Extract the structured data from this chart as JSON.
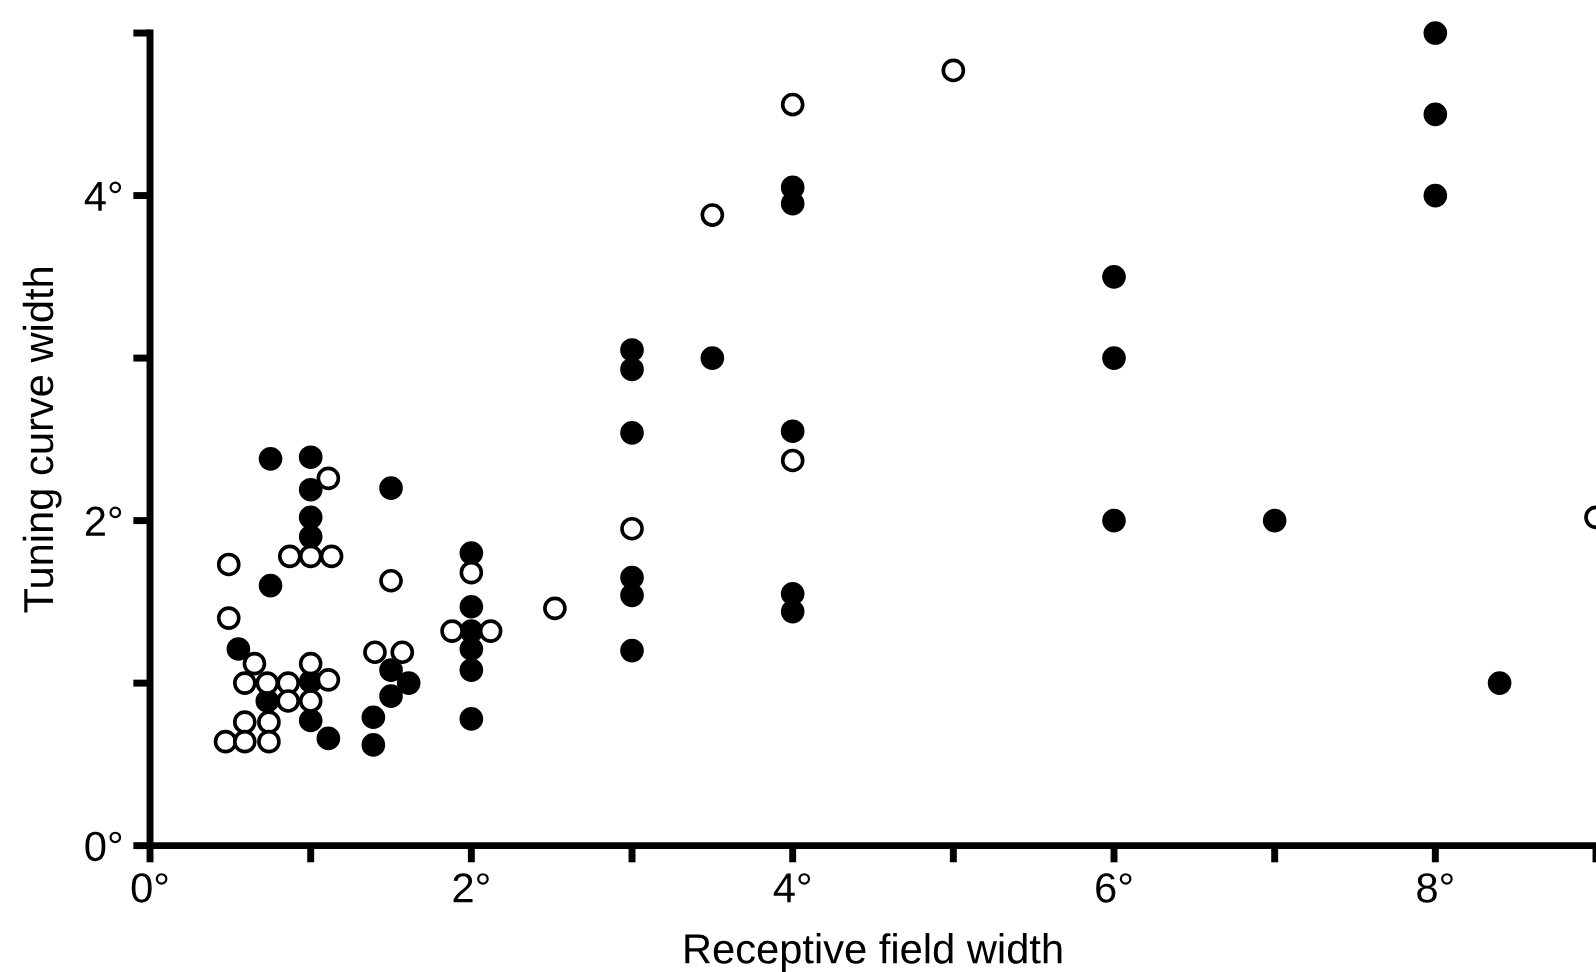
{
  "chart_data": {
    "type": "scatter",
    "xlabel": "Receptive field width",
    "ylabel": "Tuning curve width",
    "xlim": [
      0,
      9
    ],
    "ylim": [
      0,
      5
    ],
    "xticks": [
      {
        "value": 0,
        "label": "0°"
      },
      {
        "value": 1,
        "label": null
      },
      {
        "value": 2,
        "label": "2°"
      },
      {
        "value": 3,
        "label": null
      },
      {
        "value": 4,
        "label": "4°"
      },
      {
        "value": 5,
        "label": null
      },
      {
        "value": 6,
        "label": "6°"
      },
      {
        "value": 7,
        "label": null
      },
      {
        "value": 8,
        "label": "8°"
      },
      {
        "value": 9,
        "label": null
      }
    ],
    "yticks": [
      {
        "value": 0,
        "label": "0°"
      },
      {
        "value": 1,
        "label": null
      },
      {
        "value": 2,
        "label": "2°"
      },
      {
        "value": 3,
        "label": null
      },
      {
        "value": 4,
        "label": "4°"
      },
      {
        "value": 5,
        "label": null
      }
    ],
    "marker": "circle",
    "grid": false,
    "legend": false,
    "series": [
      {
        "color": "#000000",
        "x": [
          0.75,
          1.0,
          1.0,
          1.0,
          1.0,
          1.5,
          0.75,
          0.55,
          1.0,
          0.73,
          1.0,
          1.11,
          1.39,
          1.39,
          1.5,
          1.61,
          1.5,
          2.0,
          2.0,
          2.0,
          2.0,
          2.0,
          2.0,
          3.0,
          3.0,
          3.0,
          3.0,
          3.0,
          3.0,
          3.5,
          4.0,
          4.0,
          4.0,
          4.0,
          4.0,
          6.0,
          6.0,
          6.0,
          7.0,
          8.0,
          8.0,
          8.0,
          8.4
        ],
        "values": [
          2.38,
          2.39,
          2.19,
          2.02,
          1.9,
          2.2,
          1.6,
          1.21,
          1.01,
          0.89,
          0.77,
          0.66,
          0.79,
          0.62,
          1.08,
          1.0,
          0.92,
          1.8,
          1.47,
          1.32,
          1.21,
          1.08,
          0.78,
          3.05,
          2.93,
          2.54,
          1.65,
          1.54,
          1.2,
          3.0,
          4.05,
          3.95,
          2.55,
          1.55,
          1.44,
          3.5,
          3.0,
          2.0,
          2.0,
          5.0,
          4.5,
          4.0,
          1.0
        ]
      },
      {
        "color": "#ffffff",
        "x": [
          4.0,
          3.5,
          4.0,
          3.0,
          2.52,
          1.11,
          0.87,
          1.0,
          1.13,
          0.49,
          0.49,
          1.5,
          2.0,
          1.88,
          2.12,
          1.4,
          1.57,
          0.65,
          1.0,
          0.59,
          0.73,
          0.86,
          1.11,
          0.86,
          1.0,
          0.59,
          0.74,
          0.47,
          0.59,
          0.74,
          9.0,
          5.0
        ],
        "values": [
          4.56,
          3.88,
          2.37,
          1.95,
          1.46,
          2.26,
          1.78,
          1.78,
          1.78,
          1.73,
          1.4,
          1.63,
          1.68,
          1.32,
          1.32,
          1.19,
          1.19,
          1.12,
          1.12,
          1.0,
          1.0,
          1.0,
          1.02,
          0.89,
          0.89,
          0.76,
          0.76,
          0.64,
          0.64,
          0.64,
          2.02,
          4.77
        ]
      }
    ]
  }
}
